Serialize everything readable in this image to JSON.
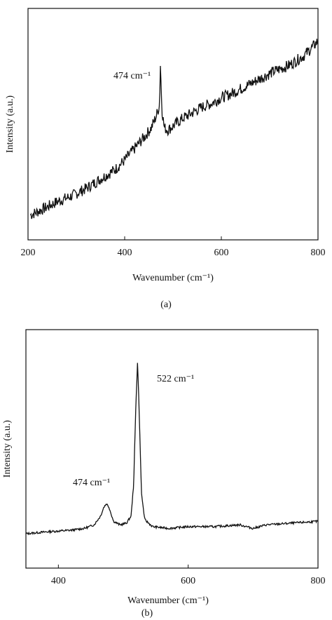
{
  "chart_data": [
    {
      "type": "line",
      "panel_label": "(a)",
      "xlabel": "Wavenumber (cm⁻¹)",
      "ylabel": "Intensity (a.u.)",
      "xlim": [
        200,
        800
      ],
      "xticks": [
        200,
        400,
        600,
        800
      ],
      "y_ticks_shown": false,
      "grid": false,
      "annotations": [
        {
          "text": "474 cm⁻¹",
          "x": 474
        }
      ],
      "series": [
        {
          "points": [
            [
              205,
              0.02
            ],
            [
              230,
              0.05
            ],
            [
              260,
              0.09
            ],
            [
              290,
              0.12
            ],
            [
              320,
              0.16
            ],
            [
              350,
              0.21
            ],
            [
              380,
              0.26
            ],
            [
              400,
              0.31
            ],
            [
              420,
              0.37
            ],
            [
              440,
              0.43
            ],
            [
              455,
              0.48
            ],
            [
              465,
              0.54
            ],
            [
              472,
              0.6
            ],
            [
              474,
              0.82
            ],
            [
              477,
              0.58
            ],
            [
              482,
              0.48
            ],
            [
              490,
              0.47
            ],
            [
              500,
              0.49
            ],
            [
              520,
              0.53
            ],
            [
              540,
              0.56
            ],
            [
              560,
              0.59
            ],
            [
              580,
              0.61
            ],
            [
              600,
              0.64
            ],
            [
              620,
              0.66
            ],
            [
              650,
              0.7
            ],
            [
              680,
              0.74
            ],
            [
              710,
              0.78
            ],
            [
              740,
              0.81
            ],
            [
              770,
              0.86
            ],
            [
              790,
              0.91
            ],
            [
              800,
              0.94
            ]
          ]
        }
      ]
    },
    {
      "type": "line",
      "panel_label": "(b)",
      "xlabel": "Wavenumber (cm⁻¹)",
      "ylabel": "Intensity (a.u.)",
      "xlim": [
        350,
        800
      ],
      "xticks": [
        400,
        600,
        800
      ],
      "y_ticks_shown": false,
      "grid": false,
      "annotations": [
        {
          "text": "474 cm⁻¹",
          "x": 474
        },
        {
          "text": "522 cm⁻¹",
          "x": 522
        }
      ],
      "series": [
        {
          "points": [
            [
              350,
              0.02
            ],
            [
              380,
              0.03
            ],
            [
              420,
              0.04
            ],
            [
              440,
              0.05
            ],
            [
              455,
              0.07
            ],
            [
              465,
              0.12
            ],
            [
              470,
              0.17
            ],
            [
              474,
              0.19
            ],
            [
              478,
              0.17
            ],
            [
              485,
              0.09
            ],
            [
              495,
              0.07
            ],
            [
              505,
              0.08
            ],
            [
              512,
              0.12
            ],
            [
              516,
              0.3
            ],
            [
              519,
              0.7
            ],
            [
              522,
              1.0
            ],
            [
              525,
              0.65
            ],
            [
              528,
              0.25
            ],
            [
              533,
              0.1
            ],
            [
              545,
              0.06
            ],
            [
              570,
              0.05
            ],
            [
              600,
              0.06
            ],
            [
              640,
              0.06
            ],
            [
              680,
              0.07
            ],
            [
              700,
              0.05
            ],
            [
              720,
              0.07
            ],
            [
              760,
              0.08
            ],
            [
              800,
              0.09
            ]
          ]
        }
      ]
    }
  ]
}
